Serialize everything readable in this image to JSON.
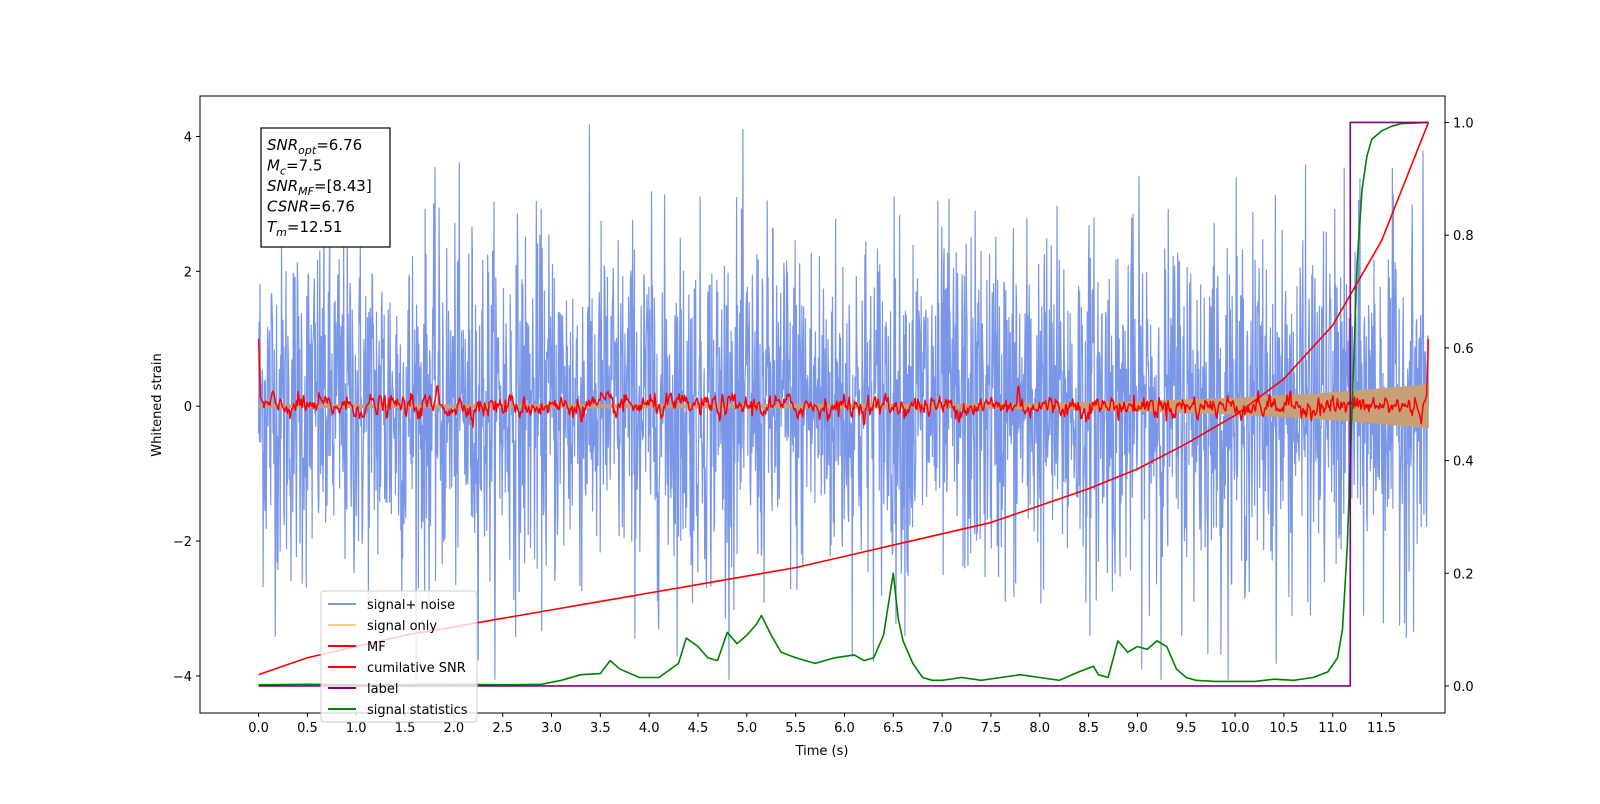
{
  "chart_data": {
    "type": "line",
    "title": "",
    "xlabel": "Time (s)",
    "ylabel": "Whitened strain",
    "y2label": "",
    "xlim": [
      -0.6,
      12.15
    ],
    "ylim": [
      -4.55,
      4.6
    ],
    "y2lim": [
      -0.048,
      1.047
    ],
    "x_ticks": [
      0.0,
      0.5,
      1.0,
      1.5,
      2.0,
      2.5,
      3.0,
      3.5,
      4.0,
      4.5,
      5.0,
      5.5,
      6.0,
      6.5,
      7.0,
      7.5,
      8.0,
      8.5,
      9.0,
      9.5,
      10.0,
      10.5,
      11.0,
      11.5
    ],
    "x_tick_labels": [
      "0.0",
      "0.5",
      "1.0",
      "1.5",
      "2.0",
      "2.5",
      "3.0",
      "3.5",
      "4.0",
      "4.5",
      "5.0",
      "5.5",
      "6.0",
      "6.5",
      "7.0",
      "7.5",
      "8.0",
      "8.5",
      "9.0",
      "9.5",
      "10.0",
      "10.5",
      "11.0",
      "11.5"
    ],
    "y_ticks": [
      -4,
      -2,
      0,
      2,
      4
    ],
    "y_tick_labels": [
      "−4",
      "−2",
      "0",
      "2",
      "4"
    ],
    "y2_ticks": [
      0.0,
      0.2,
      0.4,
      0.6,
      0.8,
      1.0
    ],
    "y2_tick_labels": [
      "0.0",
      "0.2",
      "0.4",
      "0.6",
      "0.8",
      "1.0"
    ],
    "grid": false,
    "legend_position": "lower-left",
    "annotation": {
      "lines": [
        {
          "var": "SNR",
          "sub": "opt",
          "value": "=6.76"
        },
        {
          "var": "M",
          "sub": "c",
          "value": "=7.5"
        },
        {
          "var": "SNR",
          "sub": "MF",
          "value": "=[8.43]"
        },
        {
          "var": "CSNR",
          "sub": "",
          "value": "=6.76"
        },
        {
          "var": "T",
          "sub": "m",
          "value": "=12.51"
        }
      ]
    },
    "series": [
      {
        "name": "signal+ noise",
        "color": "#7a96e8",
        "axis": "left",
        "style": "noise",
        "x_range": [
          0.0,
          11.98
        ],
        "envelope": {
          "typical_amplitude": 1.3,
          "max_high": 4.17,
          "min_low": -4.05
        }
      },
      {
        "name": "signal only",
        "color": "#c8a078",
        "legend_color": "#ffcc80",
        "axis": "left",
        "style": "envelope",
        "x": [
          0.0,
          7.5,
          9.0,
          10.0,
          11.0,
          11.98
        ],
        "amplitude": [
          0.02,
          0.03,
          0.07,
          0.12,
          0.2,
          0.32
        ]
      },
      {
        "name": "MF",
        "color": "#ff0000",
        "axis": "left",
        "style": "mf",
        "x_range": [
          0.0,
          11.98
        ],
        "peaks": [
          {
            "x": 0.0,
            "y": 1.0
          },
          {
            "x": 1.83,
            "y": 0.38
          },
          {
            "x": 7.78,
            "y": 0.35
          },
          {
            "x": 11.98,
            "y": 1.0
          }
        ]
      },
      {
        "name": "cumilative SNR",
        "color": "#ff0000",
        "axis": "right",
        "x": [
          0.0,
          0.5,
          1.0,
          1.5,
          2.0,
          2.5,
          3.0,
          3.5,
          4.0,
          4.5,
          5.0,
          5.5,
          6.0,
          6.5,
          7.0,
          7.5,
          8.0,
          8.5,
          9.0,
          9.5,
          10.0,
          10.5,
          11.0,
          11.5,
          11.98
        ],
        "y": [
          0.02,
          0.05,
          0.07,
          0.09,
          0.105,
          0.12,
          0.135,
          0.15,
          0.165,
          0.18,
          0.195,
          0.21,
          0.23,
          0.25,
          0.27,
          0.29,
          0.32,
          0.35,
          0.385,
          0.43,
          0.48,
          0.545,
          0.64,
          0.79,
          1.0
        ]
      },
      {
        "name": "label",
        "color": "#800080",
        "axis": "right",
        "x": [
          0.0,
          11.18,
          11.18,
          11.22,
          11.98
        ],
        "y": [
          0.0,
          0.0,
          1.0,
          1.0,
          1.0
        ]
      },
      {
        "name": "signal statistics",
        "color": "#008000",
        "axis": "right",
        "x": [
          0.0,
          0.5,
          1.0,
          1.5,
          2.0,
          2.5,
          2.9,
          3.1,
          3.3,
          3.5,
          3.6,
          3.7,
          3.9,
          4.1,
          4.3,
          4.38,
          4.5,
          4.6,
          4.7,
          4.8,
          4.9,
          5.0,
          5.1,
          5.15,
          5.25,
          5.35,
          5.5,
          5.6,
          5.7,
          5.9,
          6.1,
          6.2,
          6.3,
          6.4,
          6.5,
          6.55,
          6.6,
          6.7,
          6.8,
          6.9,
          7.0,
          7.2,
          7.4,
          7.6,
          7.8,
          8.0,
          8.2,
          8.4,
          8.55,
          8.6,
          8.7,
          8.8,
          8.9,
          9.0,
          9.1,
          9.2,
          9.3,
          9.4,
          9.5,
          9.6,
          9.8,
          10.0,
          10.2,
          10.4,
          10.6,
          10.8,
          10.95,
          11.05,
          11.1,
          11.15,
          11.2,
          11.25,
          11.3,
          11.35,
          11.4,
          11.5,
          11.6,
          11.7,
          11.98
        ],
        "y": [
          0.002,
          0.003,
          0.002,
          0.002,
          0.003,
          0.002,
          0.003,
          0.01,
          0.02,
          0.022,
          0.045,
          0.03,
          0.015,
          0.015,
          0.04,
          0.085,
          0.07,
          0.05,
          0.045,
          0.095,
          0.075,
          0.09,
          0.11,
          0.125,
          0.09,
          0.06,
          0.05,
          0.045,
          0.04,
          0.05,
          0.055,
          0.045,
          0.05,
          0.09,
          0.2,
          0.12,
          0.08,
          0.04,
          0.015,
          0.01,
          0.01,
          0.015,
          0.01,
          0.015,
          0.02,
          0.015,
          0.01,
          0.025,
          0.035,
          0.02,
          0.015,
          0.08,
          0.06,
          0.07,
          0.065,
          0.08,
          0.07,
          0.03,
          0.015,
          0.01,
          0.008,
          0.008,
          0.008,
          0.012,
          0.01,
          0.015,
          0.025,
          0.05,
          0.1,
          0.25,
          0.5,
          0.75,
          0.88,
          0.94,
          0.97,
          0.985,
          0.993,
          0.998,
          1.0
        ]
      }
    ]
  }
}
